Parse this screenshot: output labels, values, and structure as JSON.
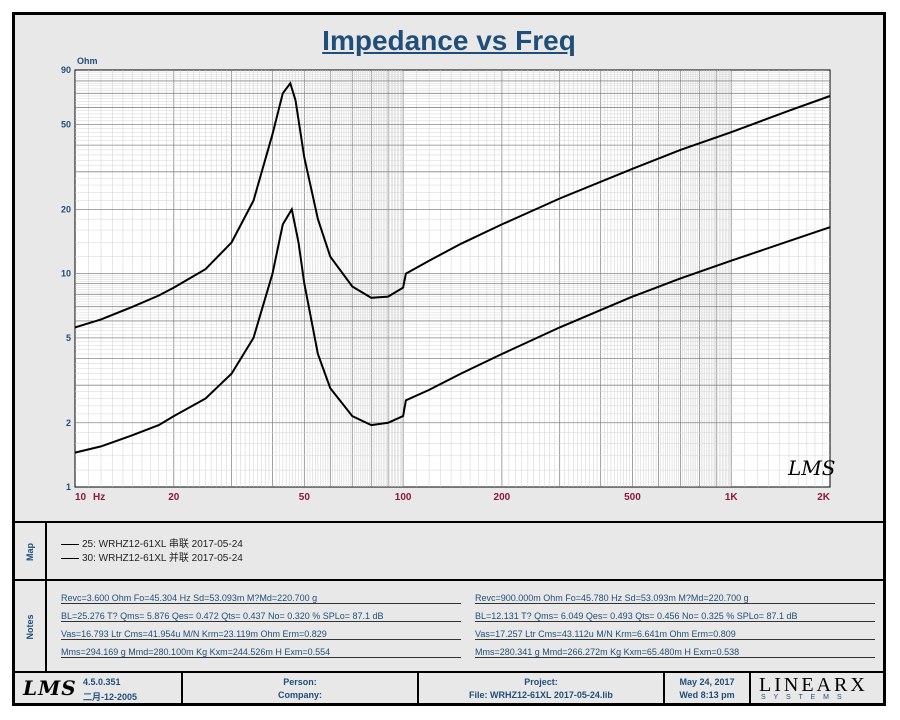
{
  "title": "Impedance vs Freq",
  "chart_data": {
    "type": "line",
    "title": "Impedance vs Freq",
    "xlabel": "Hz",
    "ylabel": "Ohm",
    "x_scale": "log",
    "y_scale": "log",
    "xlim": [
      10,
      2000
    ],
    "ylim": [
      1,
      90
    ],
    "x_ticks": [
      10,
      20,
      50,
      100,
      200,
      500,
      1000,
      2000
    ],
    "x_tick_labels": [
      "10",
      "20",
      "50",
      "100",
      "200",
      "500",
      "1K",
      "2K"
    ],
    "y_ticks": [
      1,
      2,
      5,
      10,
      20,
      50,
      90
    ],
    "y_tick_labels": [
      "1",
      "2",
      "5",
      "10",
      "20",
      "50",
      "90"
    ],
    "grid": true,
    "series": [
      {
        "name": "25: WRHZ12-61XL 串联 2017-05-24",
        "color": "#000000",
        "x": [
          10,
          12,
          15,
          18,
          20,
          25,
          30,
          35,
          40,
          43,
          45.3,
          47,
          50,
          55,
          60,
          70,
          80,
          90,
          100,
          102,
          120,
          150,
          200,
          300,
          500,
          700,
          1000,
          1500,
          2000
        ],
        "y": [
          5.6,
          6.1,
          7.0,
          7.9,
          8.6,
          10.5,
          14.0,
          22.0,
          45.0,
          70.0,
          78.0,
          65.0,
          35.0,
          18.0,
          12.0,
          8.7,
          7.7,
          7.8,
          8.6,
          10.0,
          11.5,
          13.8,
          17.0,
          22.5,
          31.0,
          38.0,
          46.0,
          58.0,
          68.0
        ]
      },
      {
        "name": "30: WRHZ12-61XL 并联 2017-05-24",
        "color": "#000000",
        "x": [
          10,
          12,
          15,
          18,
          20,
          25,
          30,
          35,
          40,
          43,
          45.8,
          48,
          50,
          55,
          60,
          70,
          80,
          90,
          100,
          102,
          120,
          150,
          200,
          300,
          500,
          700,
          1000,
          1500,
          2000
        ],
        "y": [
          1.45,
          1.55,
          1.75,
          1.95,
          2.15,
          2.6,
          3.4,
          5.0,
          10.0,
          17.0,
          20.0,
          14.0,
          9.0,
          4.2,
          2.9,
          2.15,
          1.95,
          2.0,
          2.15,
          2.55,
          2.85,
          3.4,
          4.2,
          5.6,
          7.8,
          9.5,
          11.5,
          14.2,
          16.5
        ]
      }
    ]
  },
  "watermark": "LMS",
  "map": {
    "label": "Map",
    "entries": [
      "25: WRHZ12-61XL 串联 2017-05-24",
      "30: WRHZ12-61XL 并联 2017-05-24"
    ]
  },
  "notes": {
    "label": "Notes",
    "left": [
      "Revc=3.600 Ohm  Fo=45.304 Hz  Sd=53.093m M?Md=220.700 g",
      "BL=25.276 T?  Qms= 5.876  Qes= 0.472  Qts= 0.437  No= 0.320 %  SPLo= 87.1 dB",
      "Vas=16.793 Ltr  Cms=41.954u M/N  Krm=23.119m Ohm  Erm=0.829",
      "Mms=294.169 g  Mmd=280.100m Kg  Kxm=244.526m H  Exm=0.554"
    ],
    "right": [
      "Revc=900.000m Ohm  Fo=45.780 Hz  Sd=53.093m M?Md=220.700 g",
      "BL=12.131 T?  Qms= 6.049  Qes= 0.493  Qts= 0.456  No= 0.325 %  SPLo= 87.1 dB",
      "Vas=17.257 Ltr  Cms=43.112u M/N  Krm=6.641m Ohm  Erm=0.809",
      "Mms=280.341 g  Mmd=266.272m Kg  Kxm=65.480m H  Exm=0.538"
    ]
  },
  "footer": {
    "logo": "LMS",
    "version": "4.5.0.351",
    "version_date": "二月-12-2005",
    "person_label": "Person:",
    "company_label": "Company:",
    "project_label": "Project:",
    "file_label": "File: WRHZ12-61XL 2017-05-24.lib",
    "date": "May 24, 2017",
    "time": "Wed  8:13 pm",
    "brand": "LINEARX",
    "brand_sub": "S Y S T E M S"
  }
}
